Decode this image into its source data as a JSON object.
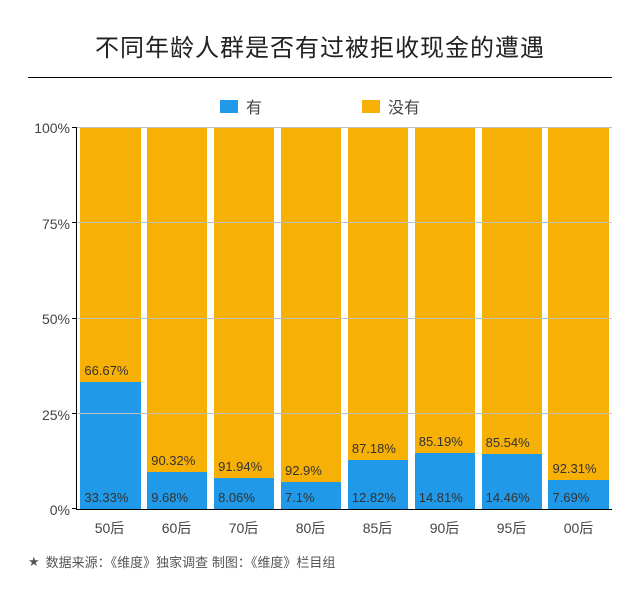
{
  "title": {
    "text": "不同年龄人群是否有过被拒收现金的遭遇",
    "fontsize": 24,
    "color": "#222222"
  },
  "legend": {
    "items": [
      {
        "label": "有",
        "color": "#2099e8"
      },
      {
        "label": "没有",
        "color": "#f7b006"
      }
    ]
  },
  "chart": {
    "type": "stacked-bar-100",
    "categories": [
      "50后",
      "60后",
      "70后",
      "80后",
      "85后",
      "90后",
      "95后",
      "00后"
    ],
    "series": [
      {
        "name": "有",
        "color": "#2099e8",
        "values": [
          33.33,
          9.68,
          8.06,
          7.1,
          12.82,
          14.81,
          14.46,
          7.69
        ]
      },
      {
        "name": "没有",
        "color": "#f7b006",
        "values": [
          66.67,
          90.32,
          91.94,
          92.9,
          87.18,
          85.19,
          85.54,
          92.31
        ]
      }
    ],
    "value_suffix": "%",
    "ylim": [
      0,
      100
    ],
    "ytick_step": 25,
    "yticks": [
      "0%",
      "25%",
      "50%",
      "75%",
      "100%"
    ],
    "axis_fontsize": 14,
    "value_label_fontsize": 13,
    "grid_color": "#bfbfbf",
    "background_color": "#ffffff",
    "bar_gap_ratio": 0.1
  },
  "footer": {
    "star": "★",
    "source_label": "数据来源：",
    "source_value": "《维度》独家调查",
    "gap": "   ",
    "producer_label": "制图：",
    "producer_value": "《维度》栏目组",
    "fontsize": 13,
    "color": "#555555"
  }
}
